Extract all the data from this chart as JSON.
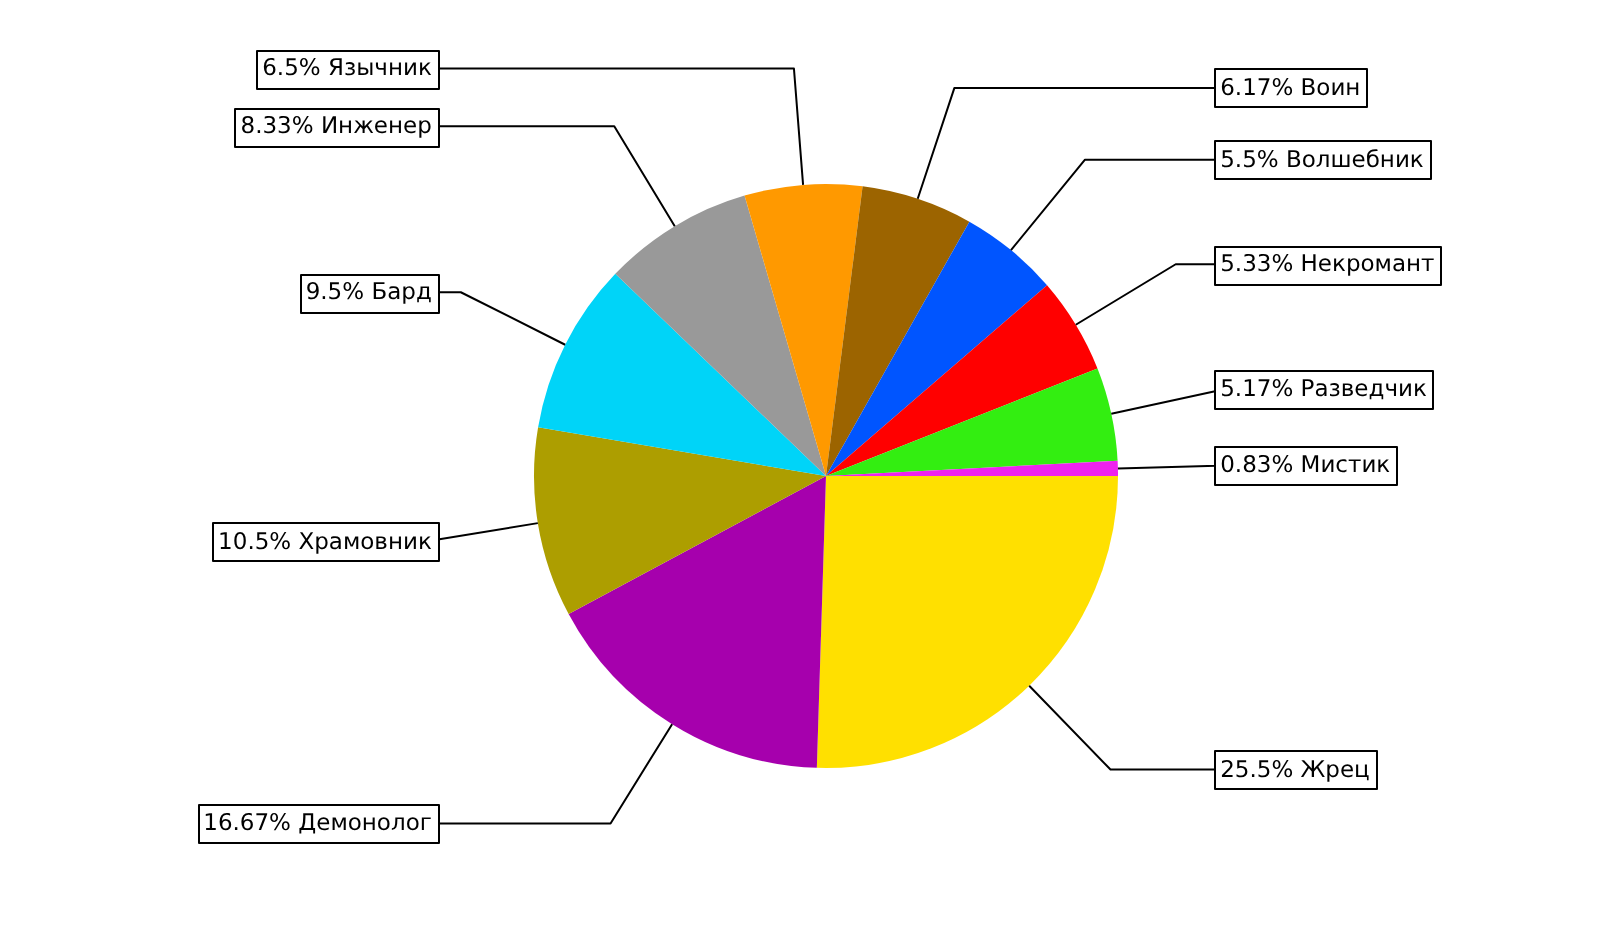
{
  "chart_data": {
    "type": "pie",
    "categories": [
      "Жрец",
      "Демонолог",
      "Храмовник",
      "Бард",
      "Инженер",
      "Язычник",
      "Воин",
      "Волшебник",
      "Некромант",
      "Разведчик",
      "Мистик"
    ],
    "values": [
      25.5,
      16.67,
      10.5,
      9.5,
      8.33,
      6.5,
      6.17,
      5.5,
      5.33,
      5.17,
      0.83
    ],
    "value_labels": [
      "25.5%",
      "16.67%",
      "10.5%",
      "9.5%",
      "8.33%",
      "6.5%",
      "6.17%",
      "5.5%",
      "5.33%",
      "5.17%",
      "0.83%"
    ],
    "colors": [
      "#ffe000",
      "#a600ad",
      "#ad9e00",
      "#00d4f8",
      "#999999",
      "#ff9900",
      "#9c6400",
      "#0055ff",
      "#ff0000",
      "#33ee11",
      "#ee22ee"
    ]
  }
}
